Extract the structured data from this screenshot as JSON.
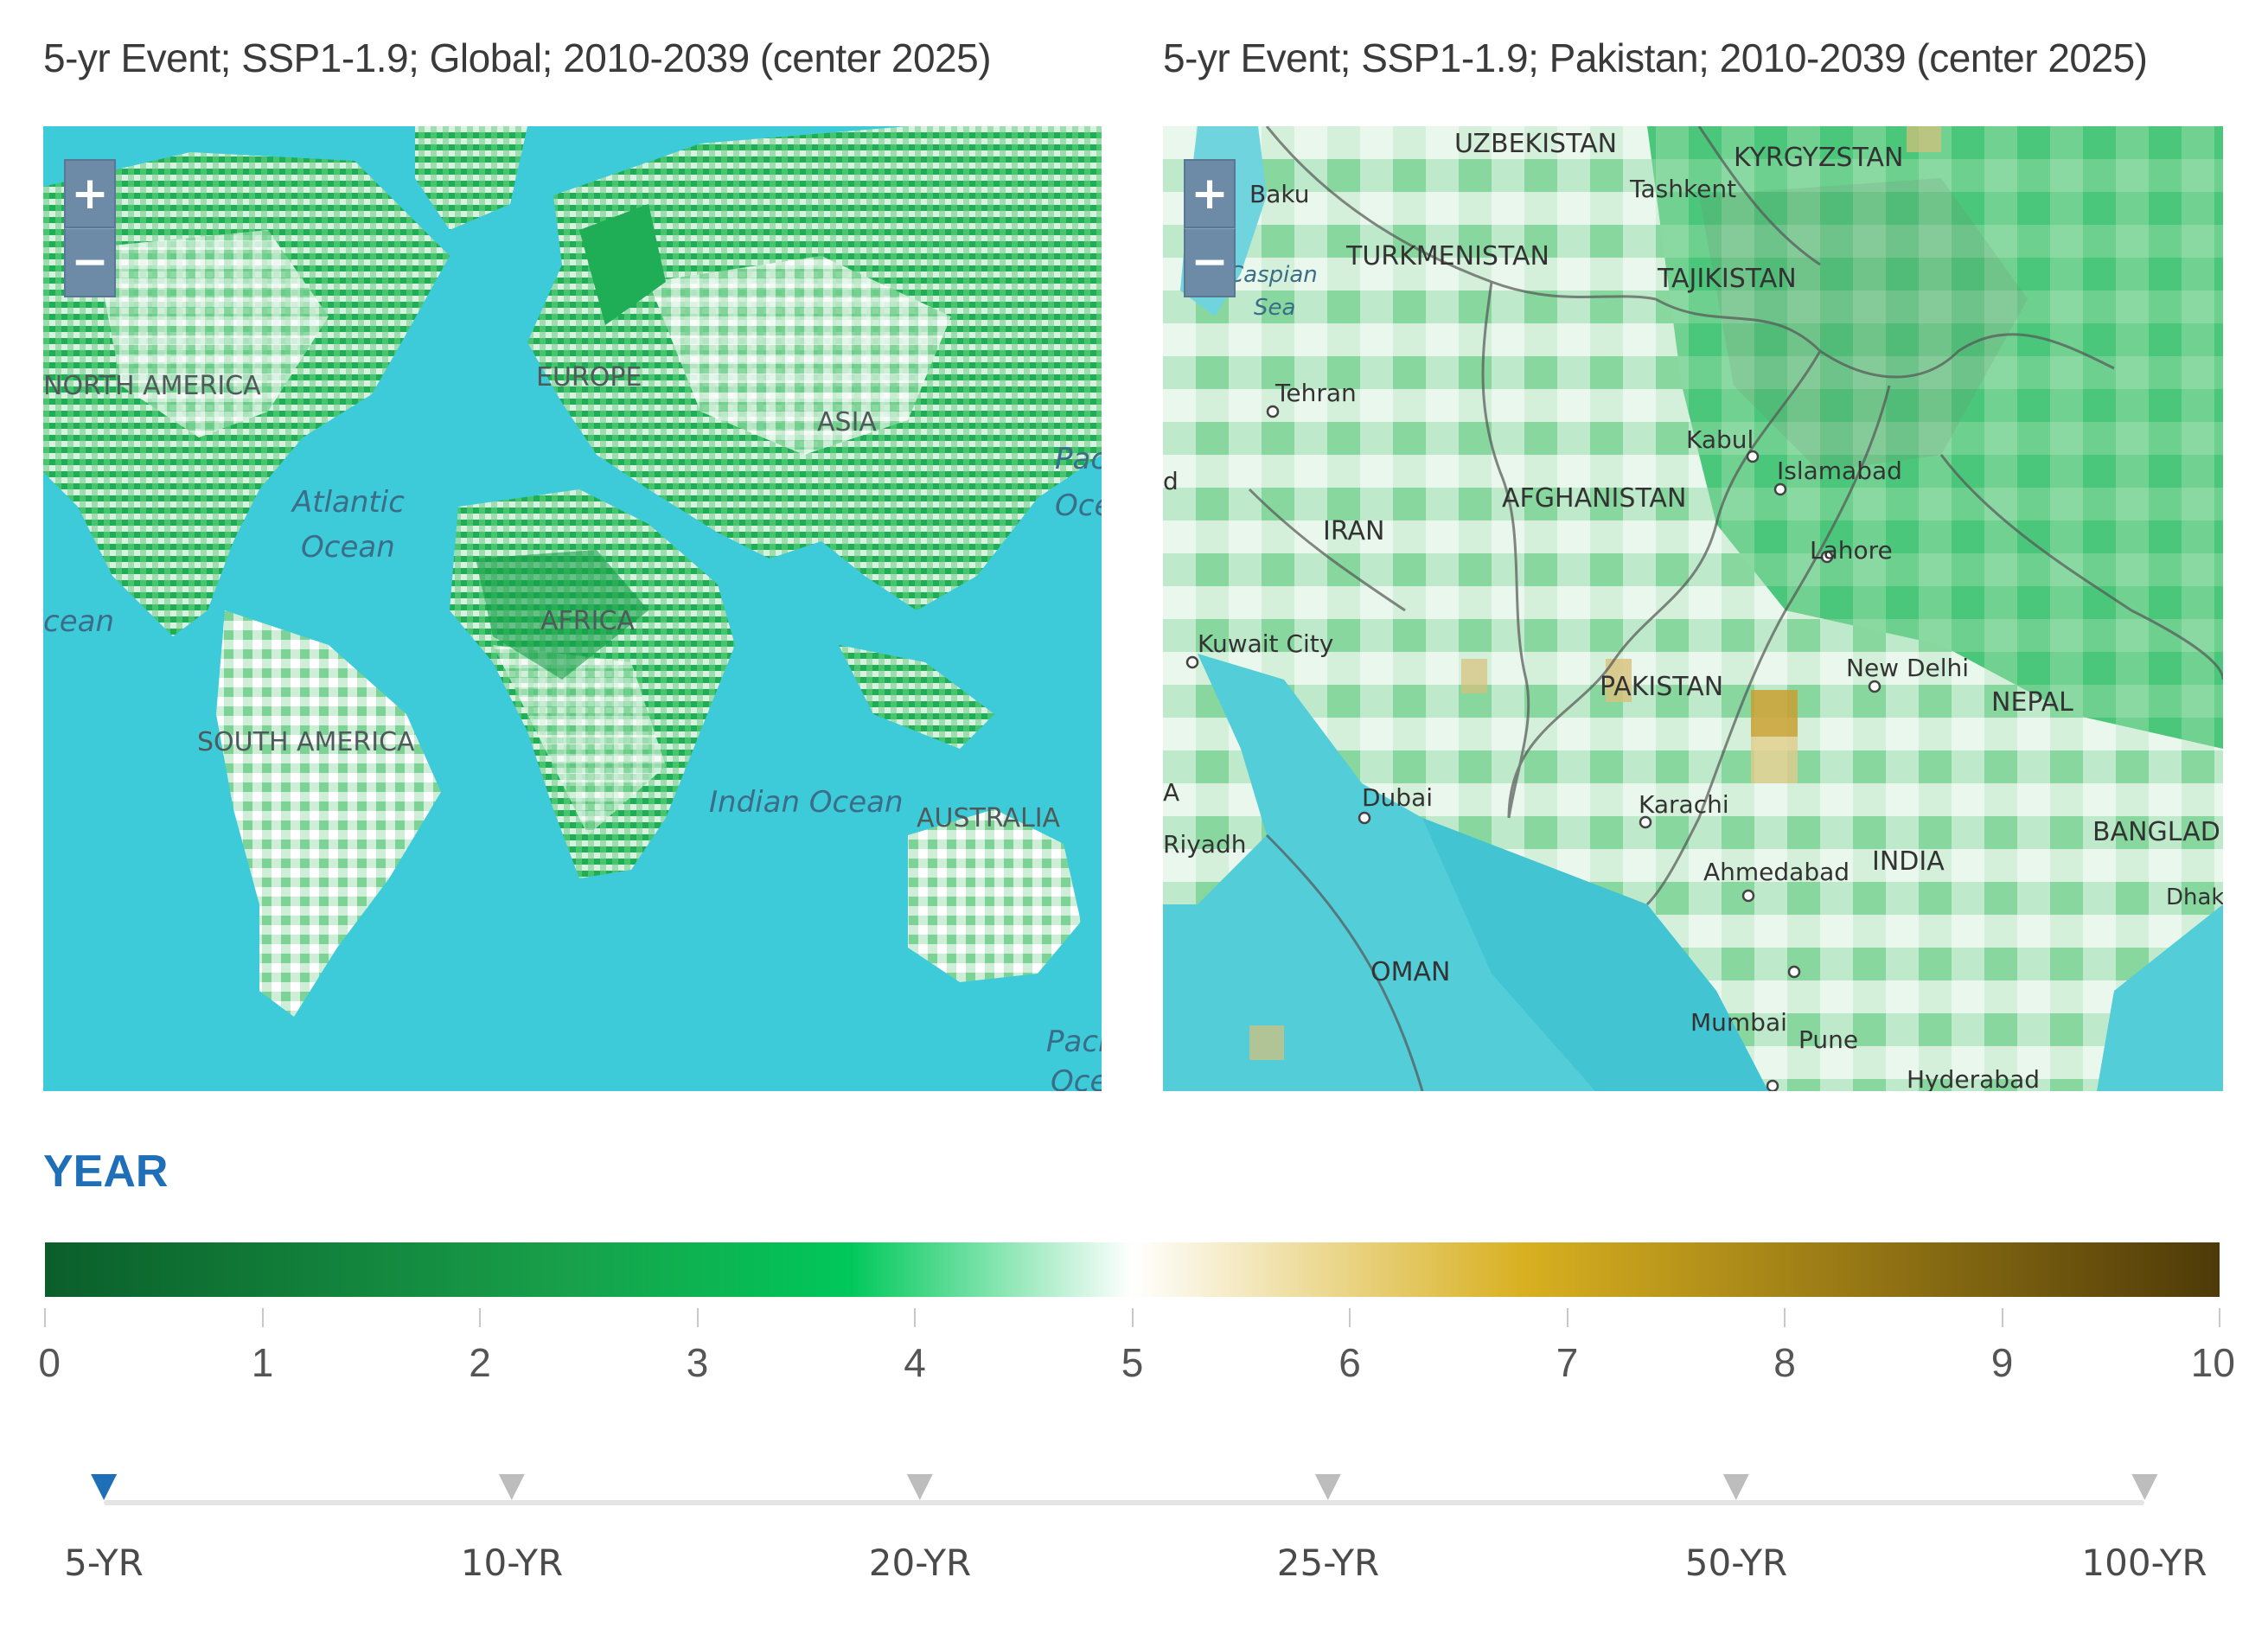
{
  "panels": [
    {
      "title": "5-yr Event; SSP1-1.9; Global; 2010-2039 (center 2025)",
      "zoom_in": "+",
      "zoom_out": "−",
      "labels": {
        "north_america": "NORTH AMERICA",
        "europe": "EUROPE",
        "asia": "ASIA",
        "atlantic_1": "Atlantic",
        "atlantic_2": "Ocean",
        "africa": "AFRICA",
        "south_america": "SOUTH AMERICA",
        "indian_ocean": "Indian Ocean",
        "australia": "AUSTRALIA",
        "pacific_e1": "Pac",
        "pacific_e2": "Oce",
        "pacific_w": "cean",
        "pacific_se1": "Paci",
        "pacific_se2": "Oce"
      }
    },
    {
      "title": "5-yr Event; SSP1-1.9; Pakistan; 2010-2039 (center 2025)",
      "zoom_in": "+",
      "zoom_out": "−",
      "labels": {
        "uzbekistan": "UZBEKISTAN",
        "kyrgyzstan": "KYRGYZSTAN",
        "tashkent": "Tashkent",
        "baku": "Baku",
        "turkmenistan": "TURKMENISTAN",
        "tajikistan": "TAJIKISTAN",
        "caspian_1": "Caspian",
        "caspian_2": "Sea",
        "tehran": "Tehran",
        "kabul": "Kabul",
        "islamabad": "Islamabad",
        "d_edge": "d",
        "afghanistan": "AFGHANISTAN",
        "iran": "IRAN",
        "lahore": "Lahore",
        "kuwait": "Kuwait City",
        "pakistan": "PAKISTAN",
        "new_delhi": "New Delhi",
        "nepal": "NEPAL",
        "dubai": "Dubai",
        "a_edge": "A",
        "karachi": "Karachi",
        "riyadh": "Riyadh",
        "ahmedabad": "Ahmedabad",
        "india": "INDIA",
        "bangladesh": "BANGLAD",
        "dhaka": "Dhak",
        "oman": "OMAN",
        "mumbai": "Mumbai",
        "pune": "Pune",
        "hyderabad": "Hyderabad"
      }
    }
  ],
  "legend": {
    "title": "YEAR",
    "ticks": [
      "0",
      "1",
      "2",
      "3",
      "4",
      "5",
      "6",
      "7",
      "8",
      "9",
      "10"
    ],
    "colors": [
      "#0b5e2a",
      "#18a04a",
      "#00c85a",
      "#ffffff",
      "#d8b020",
      "#4e3a08"
    ]
  },
  "slider": {
    "selected": "5-YR",
    "stops": [
      "5-YR",
      "10-YR",
      "20-YR",
      "25-YR",
      "50-YR",
      "100-YR"
    ]
  }
}
